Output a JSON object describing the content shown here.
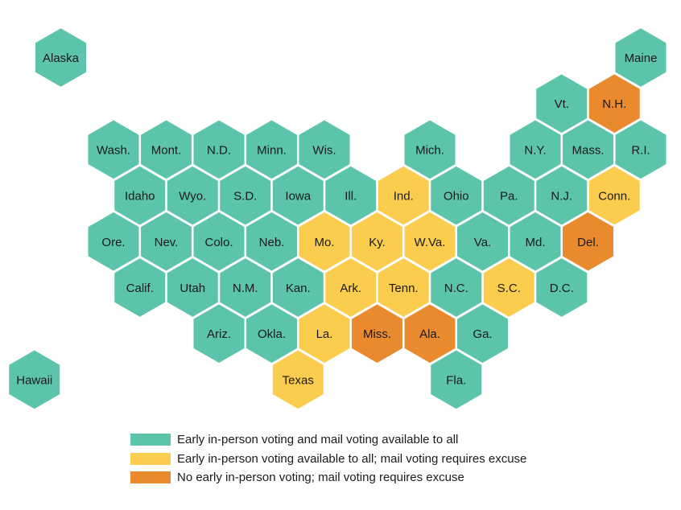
{
  "colors": {
    "all_access": "#5bc4aa",
    "early_only": "#fbcd4f",
    "none": "#ea8a2e",
    "border": "#ffffff"
  },
  "legend": [
    {
      "category": "all_access",
      "label": "Early in-person voting and mail voting available to all"
    },
    {
      "category": "early_only",
      "label": "Early in-person voting available to all; mail voting requires excuse"
    },
    {
      "category": "none",
      "label": "No early in-person voting; mail voting requires excuse"
    }
  ],
  "states": [
    {
      "label": "Alaska",
      "category": "all_access",
      "col": 0,
      "row": 0
    },
    {
      "label": "Maine",
      "category": "all_access",
      "col": 11,
      "row": 0
    },
    {
      "label": "Vt.",
      "category": "all_access",
      "col": 9.5,
      "row": 1
    },
    {
      "label": "N.H.",
      "category": "none",
      "col": 10.5,
      "row": 1
    },
    {
      "label": "Wash.",
      "category": "all_access",
      "col": 1,
      "row": 2
    },
    {
      "label": "Mont.",
      "category": "all_access",
      "col": 2,
      "row": 2
    },
    {
      "label": "N.D.",
      "category": "all_access",
      "col": 3,
      "row": 2
    },
    {
      "label": "Minn.",
      "category": "all_access",
      "col": 4,
      "row": 2
    },
    {
      "label": "Wis.",
      "category": "all_access",
      "col": 5,
      "row": 2
    },
    {
      "label": "Mich.",
      "category": "all_access",
      "col": 7,
      "row": 2
    },
    {
      "label": "N.Y.",
      "category": "all_access",
      "col": 9,
      "row": 2
    },
    {
      "label": "Mass.",
      "category": "all_access",
      "col": 10,
      "row": 2
    },
    {
      "label": "R.I.",
      "category": "all_access",
      "col": 11,
      "row": 2
    },
    {
      "label": "Idaho",
      "category": "all_access",
      "col": 1.5,
      "row": 3
    },
    {
      "label": "Wyo.",
      "category": "all_access",
      "col": 2.5,
      "row": 3
    },
    {
      "label": "S.D.",
      "category": "all_access",
      "col": 3.5,
      "row": 3
    },
    {
      "label": "Iowa",
      "category": "all_access",
      "col": 4.5,
      "row": 3
    },
    {
      "label": "Ill.",
      "category": "all_access",
      "col": 5.5,
      "row": 3
    },
    {
      "label": "Ind.",
      "category": "early_only",
      "col": 6.5,
      "row": 3
    },
    {
      "label": "Ohio",
      "category": "all_access",
      "col": 7.5,
      "row": 3
    },
    {
      "label": "Pa.",
      "category": "all_access",
      "col": 8.5,
      "row": 3
    },
    {
      "label": "N.J.",
      "category": "all_access",
      "col": 9.5,
      "row": 3
    },
    {
      "label": "Conn.",
      "category": "early_only",
      "col": 10.5,
      "row": 3
    },
    {
      "label": "Ore.",
      "category": "all_access",
      "col": 1,
      "row": 4
    },
    {
      "label": "Nev.",
      "category": "all_access",
      "col": 2,
      "row": 4
    },
    {
      "label": "Colo.",
      "category": "all_access",
      "col": 3,
      "row": 4
    },
    {
      "label": "Neb.",
      "category": "all_access",
      "col": 4,
      "row": 4
    },
    {
      "label": "Mo.",
      "category": "early_only",
      "col": 5,
      "row": 4
    },
    {
      "label": "Ky.",
      "category": "early_only",
      "col": 6,
      "row": 4
    },
    {
      "label": "W.Va.",
      "category": "early_only",
      "col": 7,
      "row": 4
    },
    {
      "label": "Va.",
      "category": "all_access",
      "col": 8,
      "row": 4
    },
    {
      "label": "Md.",
      "category": "all_access",
      "col": 9,
      "row": 4
    },
    {
      "label": "Del.",
      "category": "none",
      "col": 10,
      "row": 4
    },
    {
      "label": "Calif.",
      "category": "all_access",
      "col": 1.5,
      "row": 5
    },
    {
      "label": "Utah",
      "category": "all_access",
      "col": 2.5,
      "row": 5
    },
    {
      "label": "N.M.",
      "category": "all_access",
      "col": 3.5,
      "row": 5
    },
    {
      "label": "Kan.",
      "category": "all_access",
      "col": 4.5,
      "row": 5
    },
    {
      "label": "Ark.",
      "category": "early_only",
      "col": 5.5,
      "row": 5
    },
    {
      "label": "Tenn.",
      "category": "early_only",
      "col": 6.5,
      "row": 5
    },
    {
      "label": "N.C.",
      "category": "all_access",
      "col": 7.5,
      "row": 5
    },
    {
      "label": "S.C.",
      "category": "early_only",
      "col": 8.5,
      "row": 5
    },
    {
      "label": "D.C.",
      "category": "all_access",
      "col": 9.5,
      "row": 5
    },
    {
      "label": "Ariz.",
      "category": "all_access",
      "col": 3,
      "row": 6
    },
    {
      "label": "Okla.",
      "category": "all_access",
      "col": 4,
      "row": 6
    },
    {
      "label": "La.",
      "category": "early_only",
      "col": 5,
      "row": 6
    },
    {
      "label": "Miss.",
      "category": "none",
      "col": 6,
      "row": 6
    },
    {
      "label": "Ala.",
      "category": "none",
      "col": 7,
      "row": 6
    },
    {
      "label": "Ga.",
      "category": "all_access",
      "col": 8,
      "row": 6
    },
    {
      "label": "Hawaii",
      "category": "all_access",
      "col": -0.5,
      "row": 7
    },
    {
      "label": "Texas",
      "category": "early_only",
      "col": 4.5,
      "row": 7
    },
    {
      "label": "Fla.",
      "category": "all_access",
      "col": 7.5,
      "row": 7
    }
  ]
}
